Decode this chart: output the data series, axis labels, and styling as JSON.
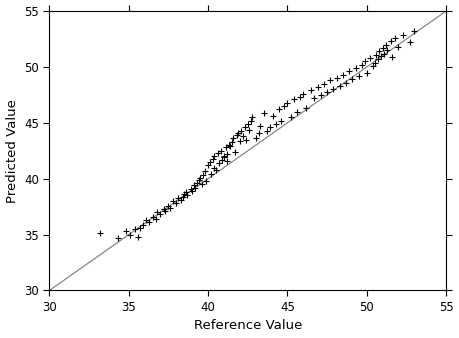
{
  "xlabel": "Reference Value",
  "ylabel": "Predicted Value",
  "xlim": [
    30,
    55
  ],
  "ylim": [
    30,
    55
  ],
  "xticks": [
    30,
    35,
    40,
    45,
    50,
    55
  ],
  "yticks": [
    30,
    35,
    40,
    45,
    50,
    55
  ],
  "line_x": [
    30,
    55
  ],
  "line_y": [
    30,
    55
  ],
  "line_color": "#888888",
  "dot_color": "#000000",
  "dot_size": 12,
  "background_color": "#ffffff",
  "tick_fontsize": 8.5,
  "label_fontsize": 9.5,
  "scatter_x": [
    33.2,
    34.3,
    34.8,
    35.1,
    35.4,
    35.6,
    35.7,
    35.9,
    36.1,
    36.3,
    36.5,
    36.7,
    36.8,
    37.0,
    37.2,
    37.3,
    37.5,
    37.6,
    37.8,
    38.0,
    38.1,
    38.3,
    38.4,
    38.5,
    38.6,
    38.7,
    38.9,
    39.0,
    39.1,
    39.2,
    39.3,
    39.4,
    39.5,
    39.6,
    39.7,
    39.8,
    39.9,
    40.0,
    40.1,
    40.2,
    40.3,
    40.4,
    40.4,
    40.5,
    40.6,
    40.7,
    40.8,
    40.9,
    41.0,
    41.0,
    41.1,
    41.2,
    41.2,
    41.3,
    41.4,
    41.5,
    41.6,
    41.7,
    41.8,
    41.9,
    42.0,
    42.1,
    42.2,
    42.3,
    42.4,
    42.5,
    42.6,
    42.7,
    42.8,
    43.0,
    43.2,
    43.3,
    43.5,
    43.7,
    43.9,
    44.1,
    44.3,
    44.5,
    44.6,
    44.8,
    45.0,
    45.2,
    45.4,
    45.6,
    45.8,
    46.0,
    46.2,
    46.5,
    46.7,
    46.9,
    47.1,
    47.3,
    47.5,
    47.7,
    47.9,
    48.1,
    48.3,
    48.5,
    48.7,
    48.9,
    49.1,
    49.3,
    49.5,
    49.7,
    49.9,
    50.0,
    50.2,
    50.4,
    50.5,
    50.6,
    50.7,
    50.8,
    50.9,
    51.0,
    51.1,
    51.2,
    51.3,
    51.5,
    51.6,
    51.8,
    52.0,
    52.3,
    52.7,
    53.0
  ],
  "scatter_y": [
    35.1,
    34.7,
    35.3,
    35.0,
    35.5,
    34.8,
    35.6,
    35.9,
    36.3,
    36.1,
    36.6,
    36.4,
    37.0,
    36.8,
    37.3,
    37.1,
    37.6,
    37.4,
    38.0,
    37.8,
    38.3,
    38.1,
    38.4,
    38.6,
    38.8,
    38.5,
    39.1,
    38.9,
    39.4,
    39.2,
    39.6,
    39.9,
    40.1,
    39.5,
    40.3,
    40.7,
    39.8,
    41.2,
    41.5,
    40.4,
    41.8,
    42.0,
    41.0,
    40.8,
    42.3,
    41.4,
    42.5,
    41.7,
    42.0,
    41.9,
    42.8,
    42.2,
    41.6,
    43.0,
    42.9,
    43.3,
    43.6,
    42.4,
    43.9,
    44.1,
    43.4,
    44.3,
    43.8,
    44.6,
    43.5,
    44.9,
    44.4,
    45.2,
    45.5,
    43.6,
    44.1,
    44.7,
    45.9,
    44.3,
    44.6,
    45.6,
    44.9,
    46.2,
    45.2,
    46.5,
    46.8,
    45.5,
    47.1,
    46.0,
    47.3,
    47.6,
    46.3,
    47.9,
    47.2,
    48.2,
    47.5,
    48.5,
    47.8,
    48.8,
    48.0,
    49.0,
    48.3,
    49.3,
    48.6,
    49.6,
    48.9,
    49.9,
    49.2,
    50.2,
    50.5,
    49.5,
    50.8,
    50.1,
    50.4,
    51.1,
    50.7,
    51.4,
    51.0,
    51.7,
    51.2,
    52.0,
    51.5,
    52.3,
    50.9,
    52.6,
    51.8,
    52.9,
    52.2,
    53.2
  ]
}
